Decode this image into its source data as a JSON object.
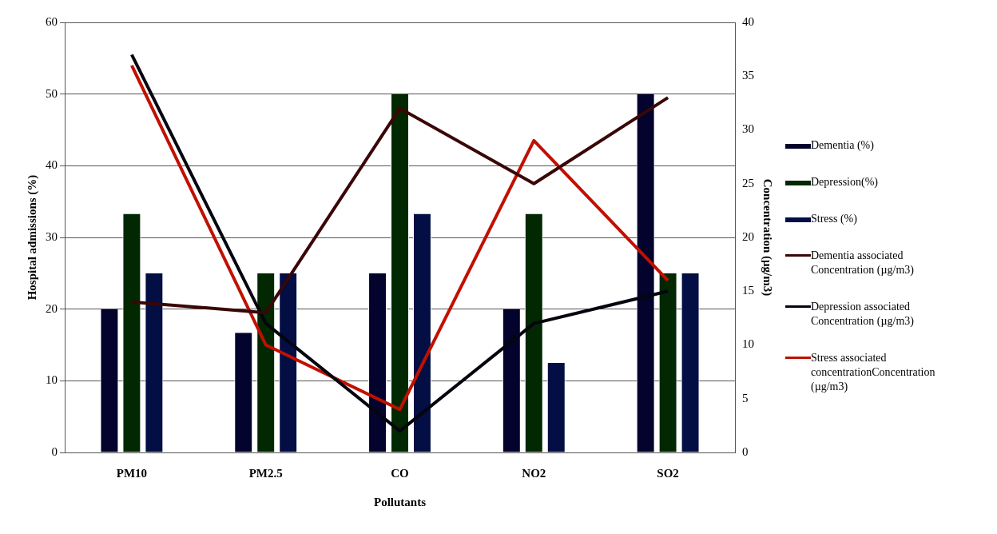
{
  "chart_data": {
    "type": "bar",
    "xlabel": "Pollutants",
    "ylabel": "Hospital admissions (%)",
    "y2label": "Concentration (µg/m3)",
    "categories": [
      "PM10",
      "PM2.5",
      "CO",
      "NO2",
      "SO2"
    ],
    "series": [
      {
        "name": "Dementia (%)",
        "color": "#03032e",
        "values": [
          20,
          16.7,
          25,
          20,
          50
        ]
      },
      {
        "name": "Depression(%)",
        "color": "#022802",
        "values": [
          33.3,
          25,
          50,
          33.3,
          25
        ]
      },
      {
        "name": "Stress (%)",
        "color": "#020e44",
        "values": [
          25,
          25,
          33.3,
          12.5,
          25
        ]
      },
      {
        "name": "Dementia associated Concentration (µg/m3)",
        "type": "line",
        "axis": "y2",
        "color": "#3a0606",
        "values": [
          14,
          13,
          32,
          25,
          33
        ]
      },
      {
        "name": "Depression associated Concentration (µg/m3)",
        "type": "line",
        "axis": "y2",
        "color": "#05050f",
        "values": [
          37,
          12,
          2,
          12,
          15
        ]
      },
      {
        "name": "Stress associated concentrationConcentration (µg/m3)",
        "type": "line",
        "axis": "y2",
        "color": "#c01000",
        "values": [
          36,
          10,
          4,
          29,
          16
        ]
      }
    ],
    "ylim": [
      0,
      60
    ],
    "yticks": [
      0,
      10,
      20,
      30,
      40,
      50,
      60
    ],
    "y2lim": [
      0,
      40
    ],
    "y2ticks": [
      0,
      5,
      10,
      15,
      20,
      25,
      30,
      35,
      40
    ],
    "grid": "y",
    "legend": "right",
    "marker": "none",
    "line_style": "solid"
  }
}
